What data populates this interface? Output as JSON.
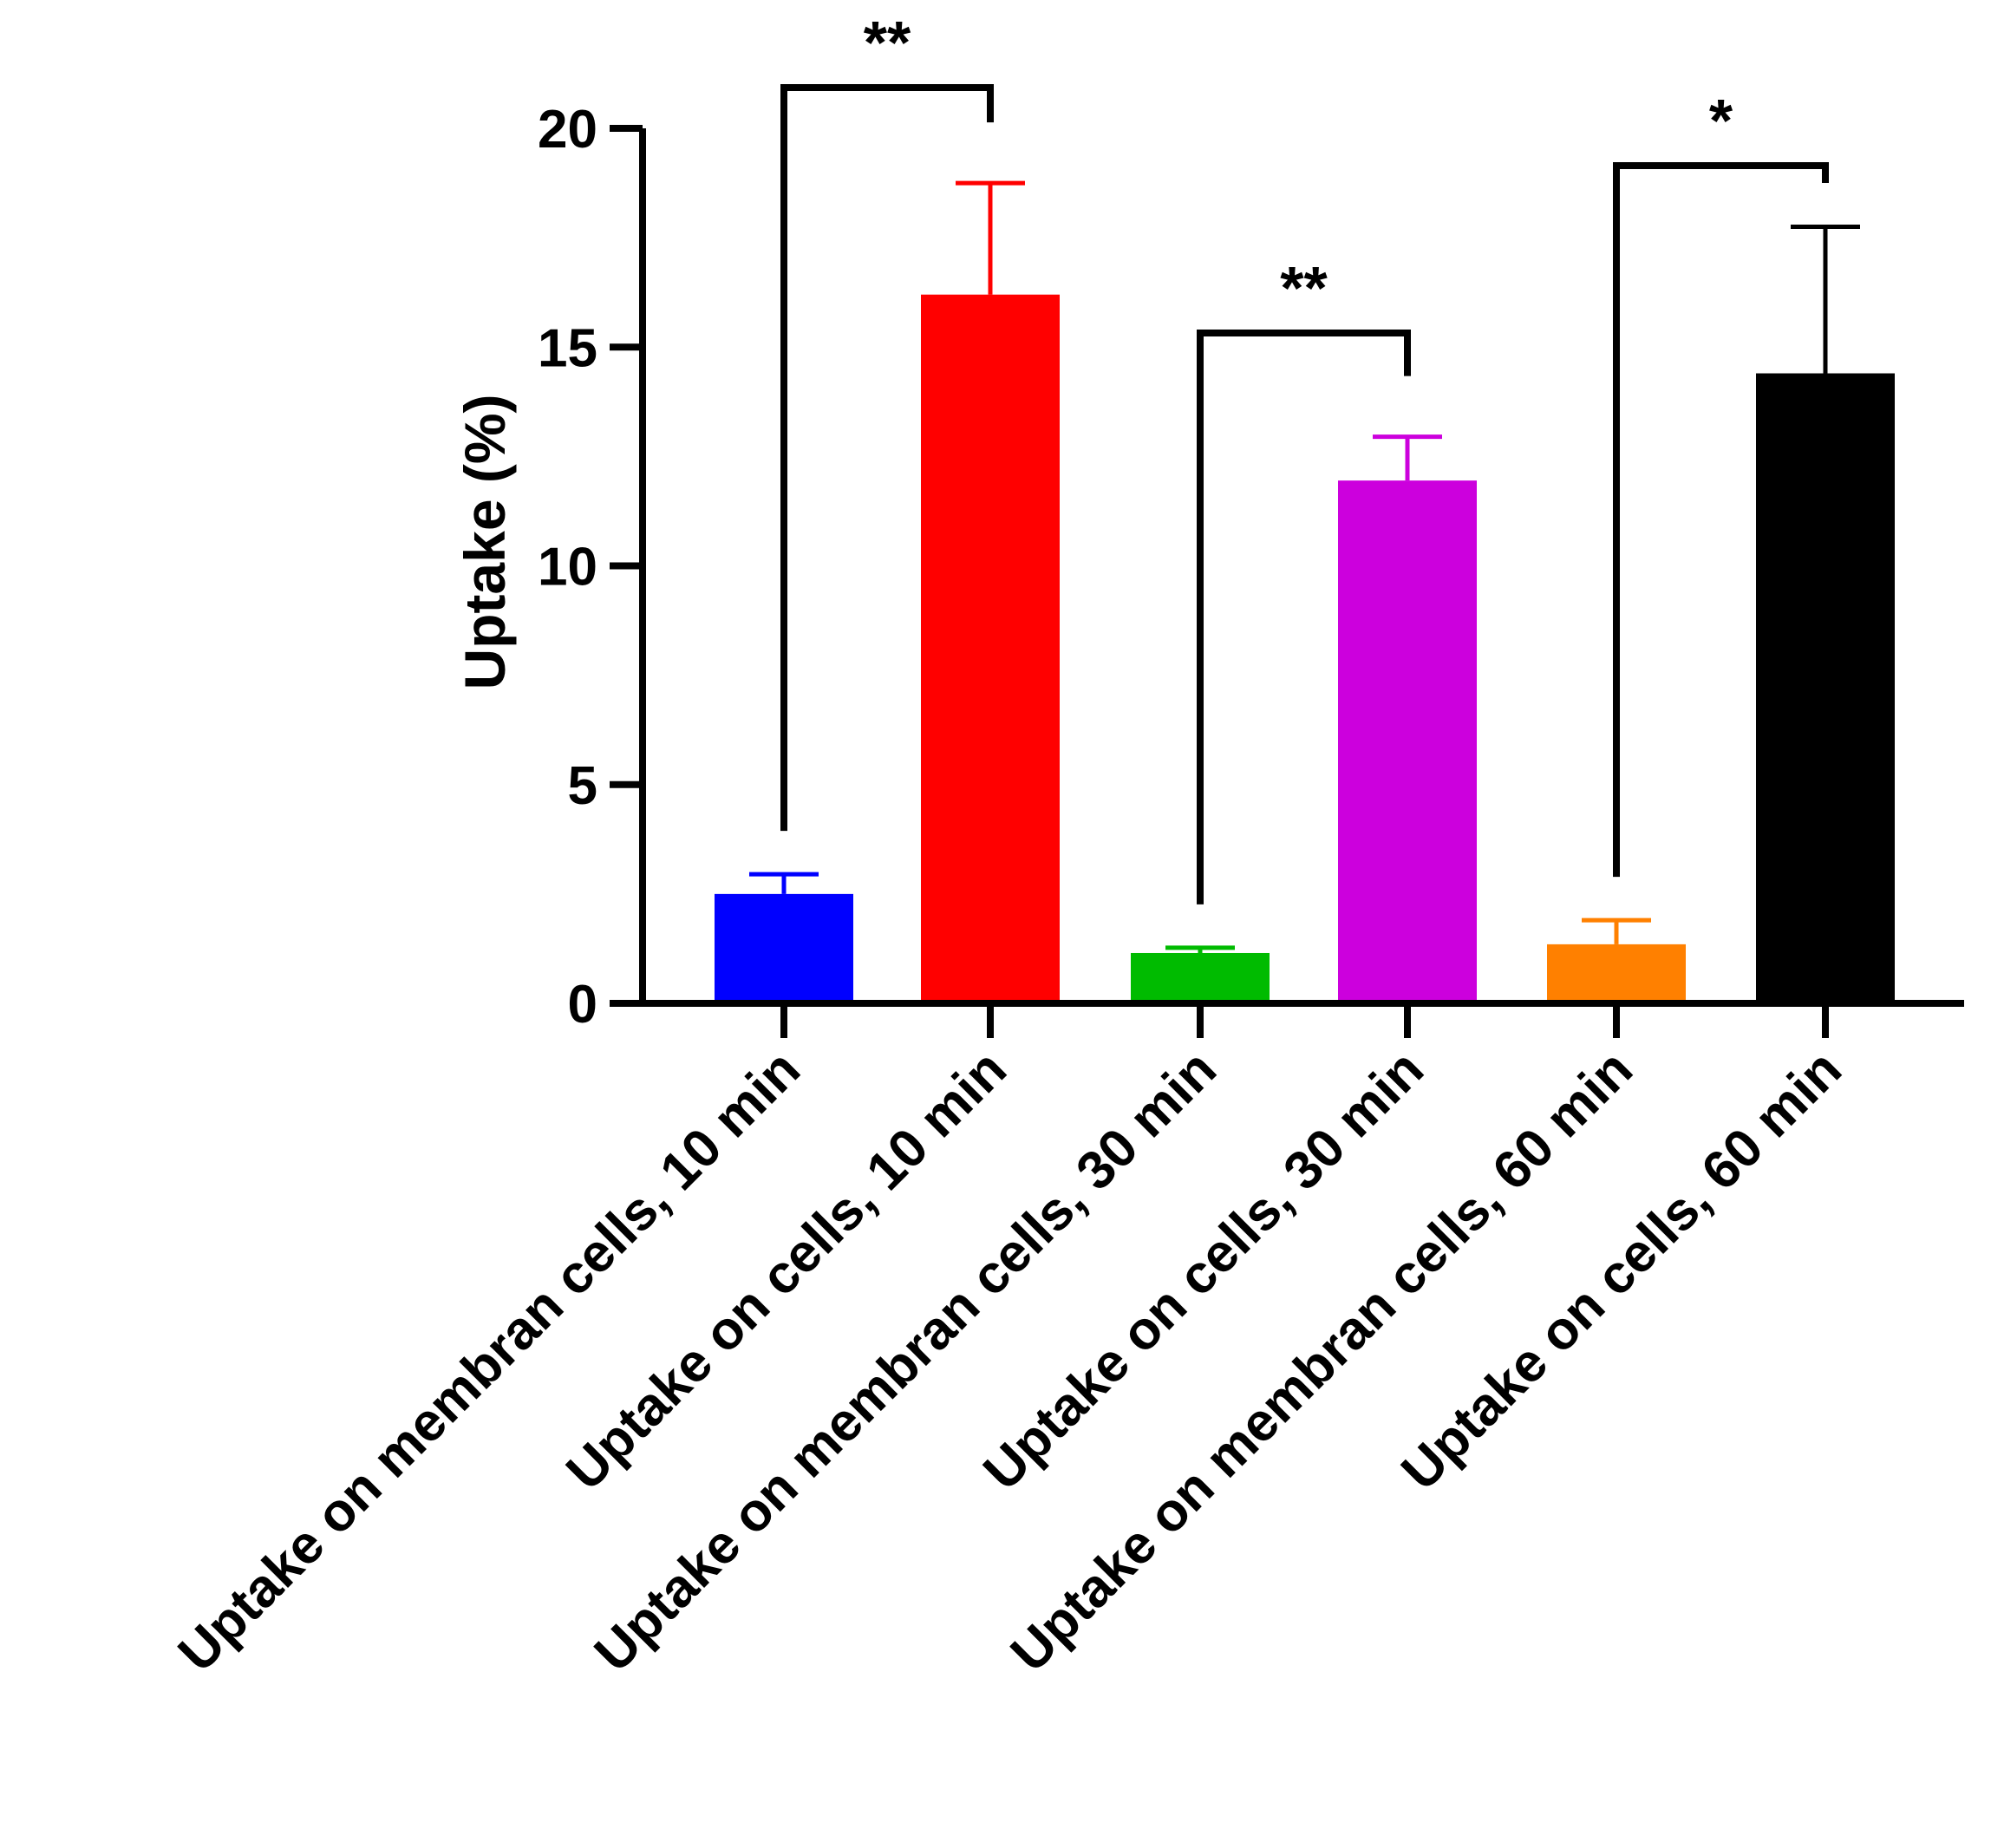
{
  "chart_data": {
    "type": "bar",
    "title": "",
    "xlabel": "",
    "ylabel": "Uptake (%)",
    "ylim": [
      0,
      20
    ],
    "yticks": [
      0,
      5,
      10,
      15,
      20
    ],
    "grid": false,
    "categories": [
      "Uptake on membran cells, 10 min",
      "Uptake on cells, 10 min",
      "Uptake on membran cells, 30 min",
      "Uptake on cells, 30 min",
      "Uptake on membran cells, 60 min",
      "Uptake on cells, 60 min"
    ],
    "values": [
      2.5,
      16.2,
      1.15,
      11.95,
      1.35,
      14.4
    ],
    "errors": [
      0.45,
      2.55,
      0.12,
      1.0,
      0.55,
      3.35
    ],
    "colors": [
      "#0000ff",
      "#ff0000",
      "#00bb00",
      "#cc00dd",
      "#ff8000",
      "#000000"
    ],
    "significance": [
      {
        "from": 0,
        "to": 1,
        "label": "**"
      },
      {
        "from": 2,
        "to": 3,
        "label": "**"
      },
      {
        "from": 4,
        "to": 5,
        "label": "*"
      }
    ]
  }
}
